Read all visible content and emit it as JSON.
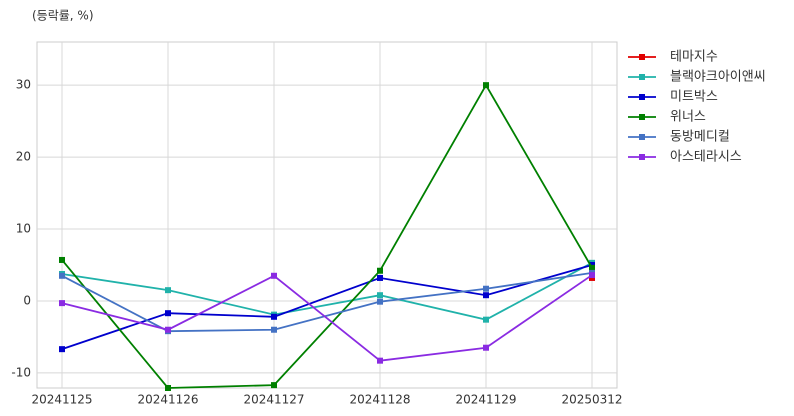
{
  "chart_data": {
    "type": "line",
    "y_label": "(등락률, %)",
    "categories": [
      "20241125",
      "20241126",
      "20241127",
      "20241128",
      "20241129",
      "20250312"
    ],
    "series": [
      {
        "name": "테마지수",
        "color": "#e00000",
        "values": [
          null,
          null,
          null,
          null,
          null,
          3.2
        ]
      },
      {
        "name": "블랙야크아이앤씨",
        "color": "#20b2aa",
        "values": [
          3.75,
          1.5,
          -1.9,
          0.8,
          -2.6,
          5.3
        ]
      },
      {
        "name": "미트박스",
        "color": "#0000cd",
        "values": [
          -6.7,
          -1.7,
          -2.2,
          3.2,
          0.8,
          5.0
        ]
      },
      {
        "name": "위너스",
        "color": "#008000",
        "values": [
          5.7,
          -12.1,
          -11.7,
          4.2,
          30,
          4.6
        ]
      },
      {
        "name": "동방메디컬",
        "color": "#4472c4",
        "values": [
          3.5,
          -4.2,
          -4.0,
          -0.1,
          1.7,
          3.9
        ]
      },
      {
        "name": "아스테라시스",
        "color": "#8a2be2",
        "values": [
          -0.3,
          -4.0,
          3.5,
          -8.3,
          -6.5,
          3.6
        ]
      }
    ],
    "ylim": [
      -12.1,
      36
    ],
    "yticks": [
      -10,
      0,
      10,
      20,
      30
    ],
    "grid": true,
    "legend": "right"
  }
}
